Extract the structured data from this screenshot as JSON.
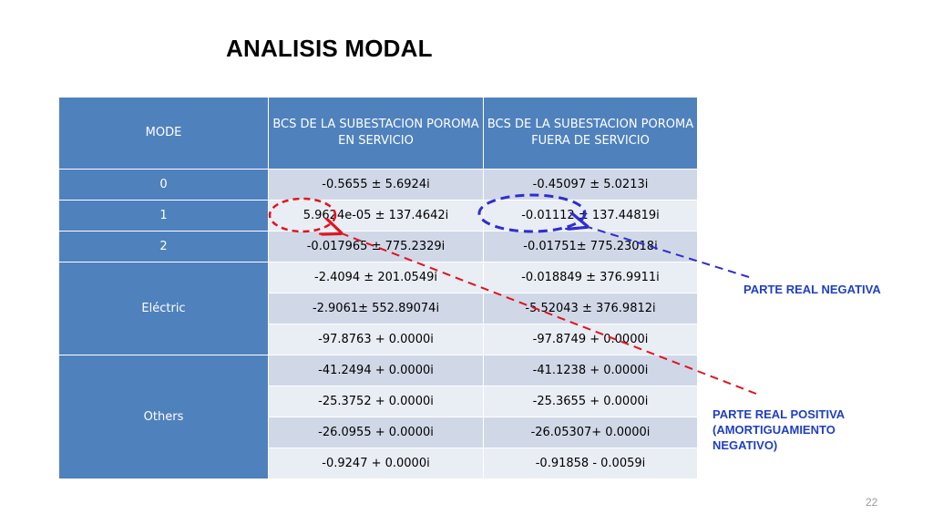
{
  "title": "ANALISIS MODAL",
  "table": {
    "headers": [
      "MODE",
      "BCS DE LA SUBESTACION POROMA EN SERVICIO",
      "BCS DE LA SUBESTACION POROMA FUERA DE SERVICIO"
    ],
    "rows": [
      {
        "mode": "0",
        "a": "-0.5655 ±  5.6924i",
        "b": "-0.45097 ±   5.0213i"
      },
      {
        "mode": "1",
        "a": "5.9624e-05 ± 137.4642i",
        "b": "-0.01112 ±   137.44819i"
      },
      {
        "mode": "2",
        "a": "-0.017965 ± 775.2329i",
        "b": "-0.01751±   775.23018i"
      },
      {
        "mode": "Eléctric",
        "a": "-2.4094 ±  201.0549i",
        "b": "-0.018849 ±  376.9911i"
      },
      {
        "a": "-2.9061±  552.89074i",
        "b": "-5.52043 ±  376.9812i"
      },
      {
        "a": "-97.8763 + 0.0000i",
        "b": "-97.8749 + 0.0000i"
      },
      {
        "mode": "Others",
        "a": "-41.2494 + 0.0000i",
        "b": "-41.1238 + 0.0000i"
      },
      {
        "a": "-25.3752 + 0.0000i",
        "b": "-25.3655 + 0.0000i"
      },
      {
        "a": "-26.0955 + 0.0000i",
        "b": "-26.05307+ 0.0000i"
      },
      {
        "a": "-0.9247 + 0.0000i",
        "b": "-0.91858 - 0.0059i"
      }
    ]
  },
  "annotations": {
    "negative_label": "PARTE REAL NEGATIVA",
    "positive_label_lines": [
      "PARTE REAL POSITIVA",
      "(AMORTIGUAMIENTO",
      "NEGATIVO)"
    ]
  },
  "colors": {
    "header_bg": "#4f81bd",
    "row_odd": "#d0d8e8",
    "row_even": "#e9edf4",
    "red_marker": "#e0141e",
    "blue_marker": "#2e2ecf"
  },
  "page_number": "22"
}
